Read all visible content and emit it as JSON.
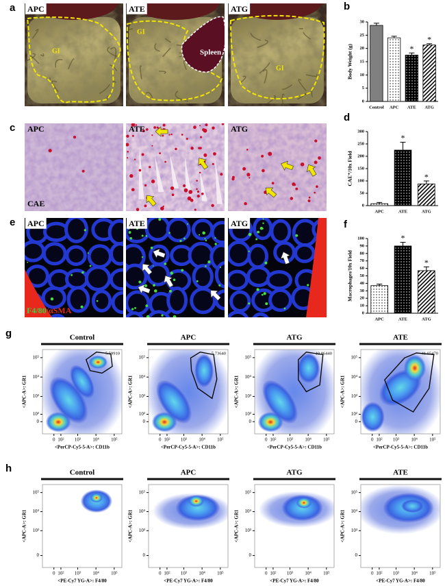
{
  "photo_panels": [
    {
      "label": "a",
      "kind": "gross",
      "images": [
        {
          "title": "APC",
          "annotations": [
            "GI"
          ]
        },
        {
          "title": "ATE",
          "annotations": [
            "GI",
            "Spleen"
          ]
        },
        {
          "title": "ATG",
          "annotations": [
            "GI"
          ]
        }
      ]
    },
    {
      "label": "c",
      "kind": "histology",
      "images": [
        {
          "title": "APC",
          "annotations": [
            "CAE"
          ]
        },
        {
          "title": "ATE"
        },
        {
          "title": "ATG"
        }
      ]
    },
    {
      "label": "e",
      "kind": "fluorescence",
      "images": [
        {
          "title": "APC",
          "annotations": [
            "F4/80",
            "/αSMA"
          ]
        },
        {
          "title": "ATE"
        },
        {
          "title": "ATG"
        }
      ]
    }
  ],
  "flow_rows": [
    {
      "label": "g"
    },
    {
      "label": "h"
    }
  ],
  "chart_data": [
    {
      "type": "bar",
      "panel": "b",
      "ylabel": "Body Weight (g)",
      "categories": [
        "Control",
        "APC",
        "ATE",
        "ATG"
      ],
      "values": [
        28.7,
        24,
        17.5,
        21.3
      ],
      "errors": [
        0.8,
        0.6,
        0.8,
        0.5
      ],
      "significance": [
        null,
        null,
        "*",
        "*"
      ],
      "fills": [
        "#808080",
        "dots",
        "dark-dots",
        "hatch"
      ],
      "ylim": [
        0,
        30
      ],
      "yticks": [
        0,
        5,
        10,
        15,
        20,
        25,
        30
      ]
    },
    {
      "type": "bar",
      "panel": "d",
      "ylabel": "CAE⁺/10x Field",
      "categories": [
        "APC",
        "ATE",
        "ATG"
      ],
      "values": [
        8,
        225,
        88
      ],
      "errors": [
        5,
        32,
        12
      ],
      "significance": [
        null,
        "*",
        "*"
      ],
      "fills": [
        "dots",
        "dark-dots",
        "hatch"
      ],
      "ylim": [
        0,
        300
      ],
      "yticks": [
        0,
        50,
        100,
        150,
        200,
        250,
        300
      ]
    },
    {
      "type": "bar",
      "panel": "f",
      "ylabel": "Macrophages/10x Field",
      "categories": [
        "APC",
        "ATE",
        "ATG"
      ],
      "values": [
        37,
        90,
        57
      ],
      "errors": [
        2,
        5,
        5
      ],
      "significance": [
        null,
        "*",
        "*"
      ],
      "fills": [
        "dots",
        "dark-dots",
        "hatch"
      ],
      "ylim": [
        0,
        100
      ],
      "yticks": [
        0,
        10,
        20,
        30,
        40,
        50,
        60,
        70,
        80,
        90,
        100
      ]
    },
    {
      "type": "density",
      "title": "Control",
      "xlabel": "<PerCP-Cy5-5-A>: CD11b",
      "ylabel": "<APC-A>: GR1",
      "scale": "biexponential",
      "xlim": [
        -200,
        262144
      ],
      "ylim": [
        -200,
        262144
      ],
      "xticks": [
        0,
        {
          "value": 100,
          "label": "10²"
        },
        {
          "value": 1000,
          "label": "10³"
        },
        {
          "value": 10000,
          "label": "10⁴"
        },
        {
          "value": 100000,
          "label": "10⁵"
        }
      ],
      "yticks": [
        0,
        {
          "value": 100,
          "label": "10²"
        },
        {
          "value": 1000,
          "label": "10³"
        },
        {
          "value": 10000,
          "label": "10⁴"
        },
        {
          "value": 100000,
          "label": "10⁵"
        }
      ],
      "gate": {
        "value": 5.5991,
        "label": "5.59910"
      }
    },
    {
      "type": "density",
      "title": "APC",
      "xlabel": "<PerCP-Cy5-5-A>: CD11b",
      "ylabel": "<APC-A>: GR1",
      "scale": "biexponential",
      "xlim": [
        -200,
        262144
      ],
      "ylim": [
        -200,
        262144
      ],
      "xticks": [
        0,
        {
          "value": 100,
          "label": "10²"
        },
        {
          "value": 1000,
          "label": "10³"
        },
        {
          "value": 10000,
          "label": "10⁴"
        },
        {
          "value": 100000,
          "label": "10⁵"
        }
      ],
      "yticks": [
        0,
        {
          "value": 100,
          "label": "10²"
        },
        {
          "value": 1000,
          "label": "10³"
        },
        {
          "value": 10000,
          "label": "10⁴"
        },
        {
          "value": 100000,
          "label": "10⁵"
        }
      ],
      "gate": {
        "value": 5.7364,
        "label": "5.73640"
      }
    },
    {
      "type": "density",
      "title": "ATG",
      "xlabel": "<PerCP-Cy5-5-A>: CD11b",
      "ylabel": "<APC-A>: GR1",
      "scale": "biexponential",
      "xlim": [
        -200,
        262144
      ],
      "ylim": [
        -200,
        262144
      ],
      "xticks": [
        0,
        {
          "value": 100,
          "label": "10²"
        },
        {
          "value": 1000,
          "label": "10³"
        },
        {
          "value": 10000,
          "label": "10⁴"
        },
        {
          "value": 100000,
          "label": "10⁵"
        }
      ],
      "yticks": [
        0,
        {
          "value": 100,
          "label": "10²"
        },
        {
          "value": 1000,
          "label": "10³"
        },
        {
          "value": 10000,
          "label": "10⁴"
        },
        {
          "value": 100000,
          "label": "10⁵"
        }
      ],
      "gate": {
        "value": 10.8644,
        "label": "10.86440"
      }
    },
    {
      "type": "density",
      "title": "ATE",
      "xlabel": "<PerCP-Cy5-5-A>: CD11b",
      "ylabel": "<APC-A>: GR1",
      "scale": "biexponential",
      "xlim": [
        -200,
        262144
      ],
      "ylim": [
        -200,
        262144
      ],
      "xticks": [
        0,
        {
          "value": 100,
          "label": "10²"
        },
        {
          "value": 1000,
          "label": "10³"
        },
        {
          "value": 10000,
          "label": "10⁴"
        },
        {
          "value": 100000,
          "label": "10⁵"
        }
      ],
      "yticks": [
        0,
        {
          "value": 100,
          "label": "10²"
        },
        {
          "value": 1000,
          "label": "10³"
        },
        {
          "value": 10000,
          "label": "10⁴"
        },
        {
          "value": 100000,
          "label": "10⁵"
        }
      ],
      "gate": {
        "value": 41.0547,
        "label": "41.05470"
      }
    },
    {
      "type": "density",
      "title": "Control",
      "xlabel": "<PE-Cy7 YG-A>: F4/80",
      "ylabel": "<APC-A>: GR1",
      "scale": "biexponential",
      "xlim": [
        -200,
        262144
      ],
      "ylim": [
        -200,
        262144
      ],
      "xticks": [
        0,
        {
          "value": 100,
          "label": "10²"
        },
        {
          "value": 1000,
          "label": "10³"
        },
        {
          "value": 10000,
          "label": "10⁴"
        },
        {
          "value": 100000,
          "label": "10⁵"
        }
      ],
      "yticks": [
        0,
        {
          "value": 1000,
          "label": "10³"
        },
        {
          "value": 10000,
          "label": "10⁴"
        },
        {
          "value": 100000,
          "label": "10⁵"
        }
      ]
    },
    {
      "type": "density",
      "title": "APC",
      "xlabel": "<PE-Cy7 YG-A>: F4/80",
      "ylabel": "<APC-A>: GR1",
      "scale": "biexponential",
      "xlim": [
        -200,
        262144
      ],
      "ylim": [
        -200,
        262144
      ],
      "xticks": [
        0,
        {
          "value": 100,
          "label": "10²"
        },
        {
          "value": 1000,
          "label": "10³"
        },
        {
          "value": 10000,
          "label": "10⁴"
        },
        {
          "value": 100000,
          "label": "10⁵"
        }
      ],
      "yticks": [
        0,
        {
          "value": 1000,
          "label": "10³"
        },
        {
          "value": 10000,
          "label": "10⁴"
        },
        {
          "value": 100000,
          "label": "10⁵"
        }
      ]
    },
    {
      "type": "density",
      "title": "ATG",
      "xlabel": "<PE-Cy7 YG-A>: F4/80",
      "ylabel": "<APC-A>: GR1",
      "scale": "biexponential",
      "xlim": [
        -200,
        262144
      ],
      "ylim": [
        -200,
        262144
      ],
      "xticks": [
        0,
        {
          "value": 100,
          "label": "10²"
        },
        {
          "value": 1000,
          "label": "10³"
        },
        {
          "value": 10000,
          "label": "10⁴"
        },
        {
          "value": 100000,
          "label": "10⁵"
        }
      ],
      "yticks": [
        0,
        {
          "value": 1000,
          "label": "10³"
        },
        {
          "value": 10000,
          "label": "10⁴"
        },
        {
          "value": 100000,
          "label": "10⁵"
        }
      ]
    },
    {
      "type": "density",
      "title": "ATE",
      "xlabel": "<PE-Cy7 YG-A>: F4/80",
      "ylabel": "<APC-A>: GR1",
      "scale": "biexponential",
      "xlim": [
        -200,
        262144
      ],
      "ylim": [
        -200,
        262144
      ],
      "xticks": [
        0,
        {
          "value": 100,
          "label": "10²"
        },
        {
          "value": 1000,
          "label": "10³"
        },
        {
          "value": 10000,
          "label": "10⁴"
        },
        {
          "value": 100000,
          "label": "10⁵"
        }
      ],
      "yticks": [
        0,
        {
          "value": 1000,
          "label": "10³"
        },
        {
          "value": 10000,
          "label": "10⁴"
        },
        {
          "value": 100000,
          "label": "10⁵"
        }
      ]
    }
  ]
}
